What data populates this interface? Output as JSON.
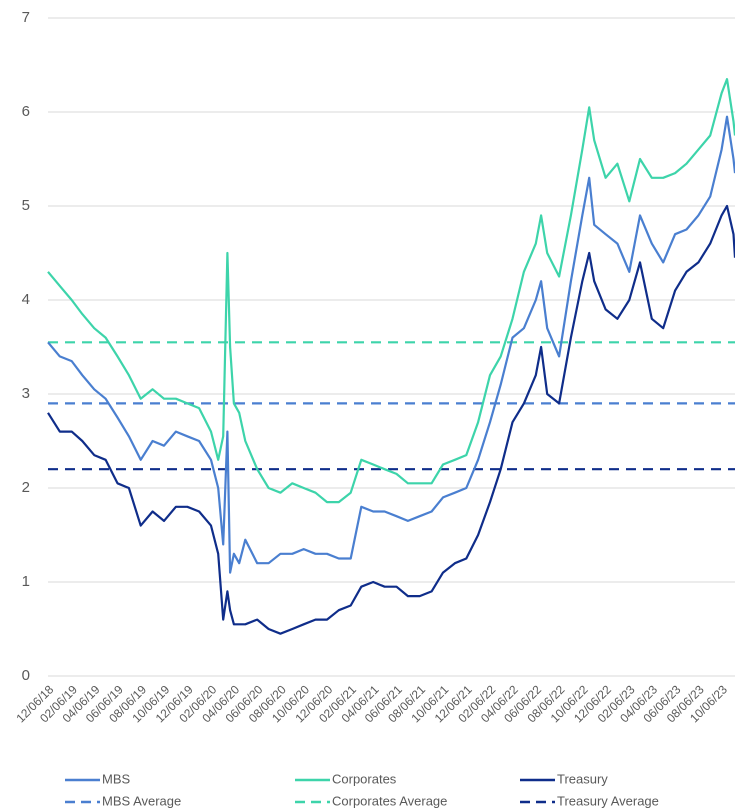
{
  "chart_data": {
    "type": "line",
    "x": [
      "12/06/18",
      "01/06/19",
      "02/06/19",
      "03/06/19",
      "04/06/19",
      "05/06/19",
      "06/06/19",
      "07/06/19",
      "08/06/19",
      "09/06/19",
      "10/06/19",
      "11/06/19",
      "12/06/19",
      "01/06/20",
      "02/06/20",
      "02/25/20",
      "03/09/20",
      "03/20/20",
      "03/27/20",
      "04/06/20",
      "04/20/20",
      "05/06/20",
      "06/06/20",
      "07/06/20",
      "08/06/20",
      "09/06/20",
      "10/06/20",
      "11/06/20",
      "12/06/20",
      "01/06/21",
      "02/06/21",
      "03/06/21",
      "04/06/21",
      "05/06/21",
      "06/06/21",
      "07/06/21",
      "08/06/21",
      "09/06/21",
      "10/06/21",
      "11/06/21",
      "12/06/21",
      "01/06/22",
      "02/06/22",
      "03/06/22",
      "04/06/22",
      "05/06/22",
      "06/06/22",
      "06/20/22",
      "07/06/22",
      "08/06/22",
      "09/06/22",
      "10/06/22",
      "10/24/22",
      "11/06/22",
      "12/06/22",
      "01/06/23",
      "02/06/23",
      "03/06/23",
      "04/06/23",
      "05/06/23",
      "06/06/23",
      "07/06/23",
      "08/06/23",
      "09/06/23",
      "10/06/23",
      "10/20/23",
      "11/06/23",
      "11/10/23"
    ],
    "series": [
      {
        "name": "MBS",
        "color": "#4a7fd0",
        "values": [
          3.55,
          3.4,
          3.35,
          3.2,
          3.05,
          2.95,
          2.75,
          2.55,
          2.3,
          2.5,
          2.45,
          2.6,
          2.55,
          2.5,
          2.3,
          2.0,
          1.4,
          2.6,
          1.1,
          1.3,
          1.2,
          1.45,
          1.2,
          1.2,
          1.3,
          1.3,
          1.35,
          1.3,
          1.3,
          1.25,
          1.25,
          1.8,
          1.75,
          1.75,
          1.7,
          1.65,
          1.7,
          1.75,
          1.9,
          1.95,
          2.0,
          2.3,
          2.7,
          3.1,
          3.6,
          3.7,
          4.0,
          4.2,
          3.7,
          3.4,
          4.2,
          4.9,
          5.3,
          4.8,
          4.7,
          4.6,
          4.3,
          4.9,
          4.6,
          4.4,
          4.7,
          4.75,
          4.9,
          5.1,
          5.6,
          5.95,
          5.5,
          5.35
        ]
      },
      {
        "name": "Corporates",
        "color": "#3dd4aa",
        "values": [
          4.3,
          4.15,
          4.0,
          3.85,
          3.7,
          3.6,
          3.4,
          3.2,
          2.95,
          3.05,
          2.95,
          2.95,
          2.9,
          2.85,
          2.6,
          2.3,
          2.55,
          4.5,
          3.5,
          2.9,
          2.8,
          2.5,
          2.2,
          2.0,
          1.95,
          2.05,
          2.0,
          1.95,
          1.85,
          1.85,
          1.95,
          2.3,
          2.25,
          2.2,
          2.15,
          2.05,
          2.05,
          2.05,
          2.25,
          2.3,
          2.35,
          2.7,
          3.2,
          3.4,
          3.8,
          4.3,
          4.6,
          4.9,
          4.5,
          4.25,
          4.9,
          5.6,
          6.05,
          5.7,
          5.3,
          5.45,
          5.05,
          5.5,
          5.3,
          5.3,
          5.35,
          5.45,
          5.6,
          5.75,
          6.2,
          6.35,
          5.9,
          5.75
        ]
      },
      {
        "name": "Treasury",
        "color": "#0f2d8a",
        "values": [
          2.8,
          2.6,
          2.6,
          2.5,
          2.35,
          2.3,
          2.05,
          2.0,
          1.6,
          1.75,
          1.65,
          1.8,
          1.8,
          1.75,
          1.6,
          1.3,
          0.6,
          0.9,
          0.7,
          0.55,
          0.55,
          0.55,
          0.6,
          0.5,
          0.45,
          0.5,
          0.55,
          0.6,
          0.6,
          0.7,
          0.75,
          0.95,
          1.0,
          0.95,
          0.95,
          0.85,
          0.85,
          0.9,
          1.1,
          1.2,
          1.25,
          1.5,
          1.85,
          2.2,
          2.7,
          2.9,
          3.2,
          3.5,
          3.0,
          2.9,
          3.6,
          4.2,
          4.5,
          4.2,
          3.9,
          3.8,
          4.0,
          4.4,
          3.8,
          3.7,
          4.1,
          4.3,
          4.4,
          4.6,
          4.9,
          5.0,
          4.7,
          4.45
        ]
      }
    ],
    "averages": [
      {
        "name": "MBS Average",
        "color": "#4a7fd0",
        "value": 2.9
      },
      {
        "name": "Corporates Average",
        "color": "#3dd4aa",
        "value": 3.55
      },
      {
        "name": "Treasury Average",
        "color": "#0f2d8a",
        "value": 2.2
      }
    ],
    "xlim": [
      "12/06/18",
      "11/10/23"
    ],
    "xticks": [
      "12/06/18",
      "02/06/19",
      "04/06/19",
      "06/06/19",
      "08/06/19",
      "10/06/19",
      "12/06/19",
      "02/06/20",
      "04/06/20",
      "06/06/20",
      "08/06/20",
      "10/06/20",
      "12/06/20",
      "02/06/21",
      "04/06/21",
      "06/06/21",
      "08/06/21",
      "10/06/21",
      "12/06/21",
      "02/06/22",
      "04/06/22",
      "06/06/22",
      "08/06/22",
      "10/06/22",
      "12/06/22",
      "02/06/23",
      "04/06/23",
      "06/06/23",
      "08/06/23",
      "10/06/23"
    ],
    "ylim": [
      0,
      7
    ],
    "yticks": [
      0,
      1,
      2,
      3,
      4,
      5,
      6,
      7
    ],
    "grid": true
  }
}
